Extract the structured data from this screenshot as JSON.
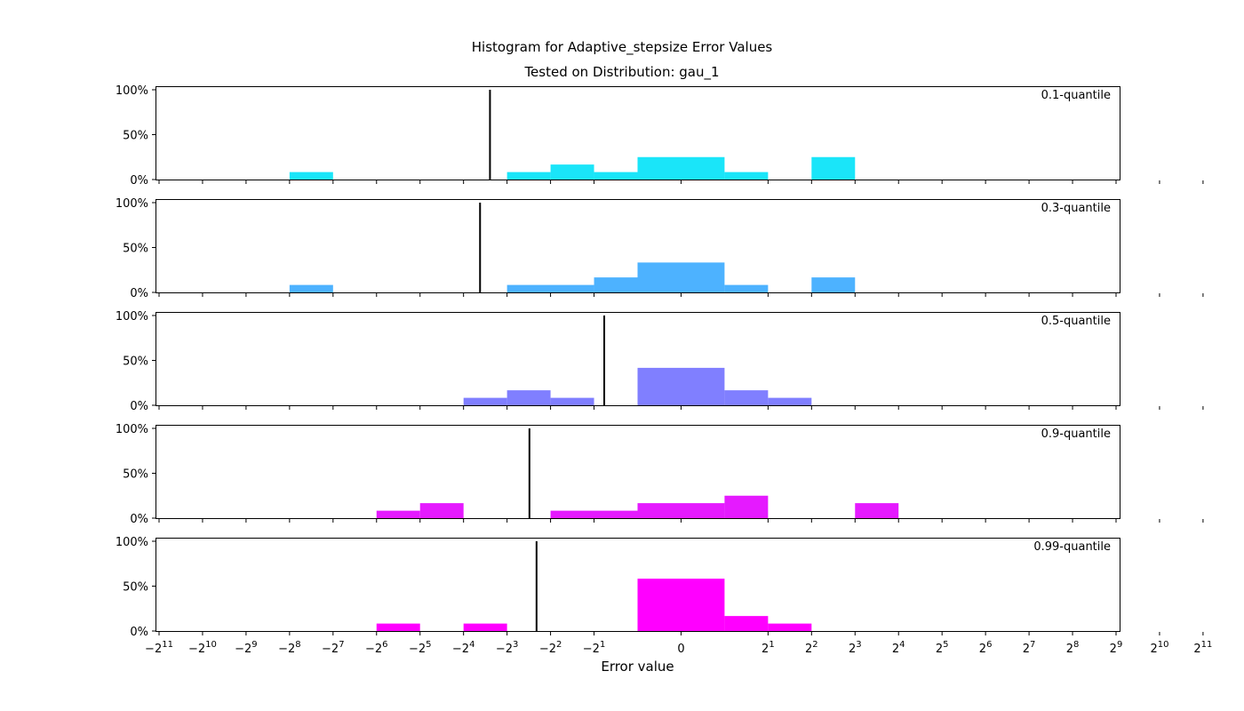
{
  "chart_data": {
    "type": "bar",
    "title": "Histogram for Adaptive_stepsize Error Values",
    "subtitle": "Tested on Distribution: gau_1",
    "xlabel": "Error value",
    "ylabel": "",
    "x_scale": "symlog base 2",
    "xlim": [
      -2048,
      2048
    ],
    "ylim": [
      0,
      100
    ],
    "y_ticks": [
      "0%",
      "50%",
      "100%"
    ],
    "x_ticks": [
      "-2^11",
      "-2^10",
      "-2^9",
      "-2^8",
      "-2^7",
      "-2^6",
      "-2^5",
      "-2^4",
      "-2^3",
      "-2^2",
      "-2^1",
      "0",
      "2^1",
      "2^2",
      "2^3",
      "2^4",
      "2^5",
      "2^6",
      "2^7",
      "2^8",
      "2^9",
      "2^10",
      "2^11"
    ],
    "bins": [
      "[-2^8,-2^7)",
      "[-2^7,-2^6)",
      "[-2^6,-2^5)",
      "[-2^5,-2^4)",
      "[-2^4,-2^3)",
      "[-2^3,-2^2)",
      "[-2^2,-2^1)",
      "[-2^1,-1)",
      "[-1,1)",
      "[1,2^1)",
      "[2^1,2^2)",
      "[2^2,2^3)",
      "[2^3,2^4)"
    ],
    "panels": [
      {
        "label": "0.1-quantile",
        "color": "#1ae5f9",
        "quantile_value": -10.5,
        "bars": [
          {
            "from": -256,
            "to": -128,
            "value": 8.3
          },
          {
            "from": -8,
            "to": -4,
            "value": 8.3
          },
          {
            "from": -4,
            "to": -2,
            "value": 16.7
          },
          {
            "from": -2,
            "to": -1,
            "value": 8.3
          },
          {
            "from": -1,
            "to": 1,
            "value": 25
          },
          {
            "from": 1,
            "to": 2,
            "value": 8.3
          },
          {
            "from": 4,
            "to": 8,
            "value": 25
          }
        ]
      },
      {
        "label": "0.3-quantile",
        "color": "#4db2ff",
        "quantile_value": -12.3,
        "bars": [
          {
            "from": -256,
            "to": -128,
            "value": 8.3
          },
          {
            "from": -8,
            "to": -2,
            "value": 8.3
          },
          {
            "from": -2,
            "to": -1,
            "value": 16.7
          },
          {
            "from": -1,
            "to": 1,
            "value": 33.3
          },
          {
            "from": 1,
            "to": 2,
            "value": 8.3
          },
          {
            "from": 4,
            "to": 8,
            "value": 16.7
          }
        ]
      },
      {
        "label": "0.5-quantile",
        "color": "#807fff",
        "quantile_value": -1.7,
        "bars": [
          {
            "from": -16,
            "to": -8,
            "value": 8.3
          },
          {
            "from": -8,
            "to": -4,
            "value": 16.7
          },
          {
            "from": -4,
            "to": -2,
            "value": 8.3
          },
          {
            "from": -1,
            "to": 1,
            "value": 41.7
          },
          {
            "from": 1,
            "to": 2,
            "value": 16.7
          },
          {
            "from": 2,
            "to": 4,
            "value": 8.3
          }
        ]
      },
      {
        "label": "0.9-quantile",
        "color": "#e51aff",
        "quantile_value": -5.6,
        "bars": [
          {
            "from": -64,
            "to": -32,
            "value": 8.3
          },
          {
            "from": -32,
            "to": -16,
            "value": 16.7
          },
          {
            "from": -4,
            "to": -1,
            "value": 8.3
          },
          {
            "from": -1,
            "to": 1,
            "value": 16.7
          },
          {
            "from": 1,
            "to": 2,
            "value": 25
          },
          {
            "from": 8,
            "to": 16,
            "value": 16.7
          }
        ]
      },
      {
        "label": "0.99-quantile",
        "color": "#ff00ff",
        "quantile_value": -5.0,
        "bars": [
          {
            "from": -64,
            "to": -32,
            "value": 8.3
          },
          {
            "from": -16,
            "to": -8,
            "value": 8.3
          },
          {
            "from": -1,
            "to": 1,
            "value": 58.3
          },
          {
            "from": 1,
            "to": 2,
            "value": 16.7
          },
          {
            "from": 2,
            "to": 4,
            "value": 8.3
          }
        ]
      }
    ]
  }
}
